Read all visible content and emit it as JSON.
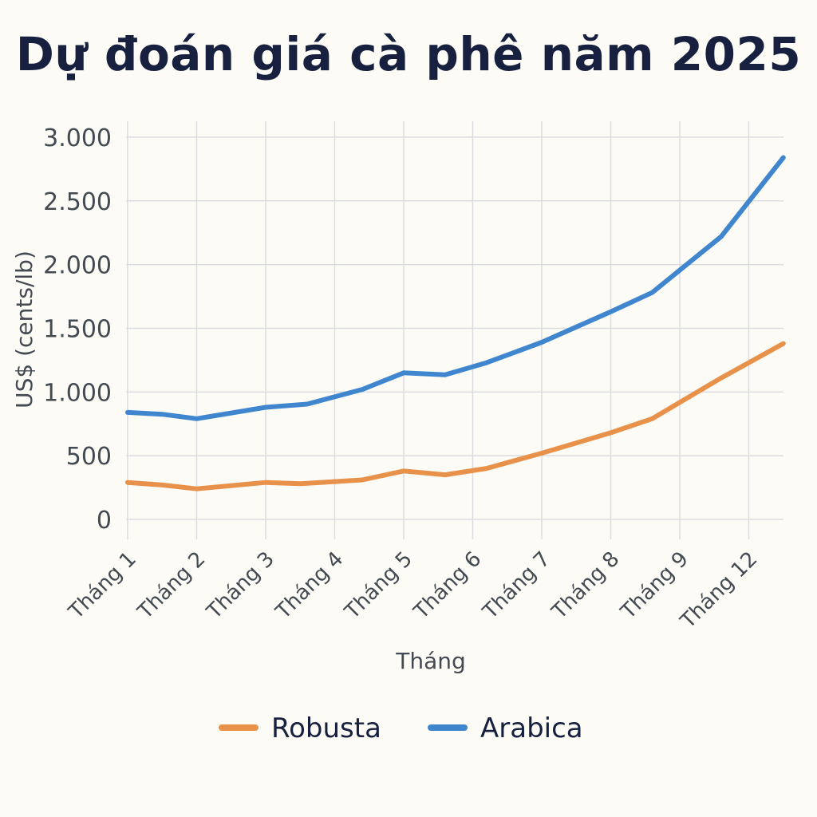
{
  "chart_data": {
    "type": "line",
    "title": "Dự đoán giá cà phê năm 2025",
    "xlabel": "Tháng",
    "ylabel": "US$ (cents/lb)",
    "categories": [
      "Tháng 1",
      "Tháng 2",
      "Tháng 3",
      "Tháng 4",
      "Tháng 5",
      "Tháng 6",
      "Tháng 7",
      "Tháng 8",
      "Tháng 9",
      "Tháng 12"
    ],
    "y_tick_labels": [
      "0",
      "500",
      "1.000",
      "1.500",
      "2.000",
      "2.500",
      "3.000"
    ],
    "y_tick_values": [
      0,
      500,
      1000,
      1500,
      2000,
      2500,
      3000
    ],
    "ylim": [
      -50,
      3100
    ],
    "grid": true,
    "legend_position": "bottom",
    "series": [
      {
        "name": "Robusta",
        "color": "#e8914a",
        "points": [
          {
            "x": 0,
            "y": 290
          },
          {
            "x": 0.5,
            "y": 270
          },
          {
            "x": 1,
            "y": 240
          },
          {
            "x": 2,
            "y": 290
          },
          {
            "x": 2.5,
            "y": 280
          },
          {
            "x": 3.4,
            "y": 310
          },
          {
            "x": 4,
            "y": 380
          },
          {
            "x": 4.6,
            "y": 350
          },
          {
            "x": 5.2,
            "y": 400
          },
          {
            "x": 6,
            "y": 520
          },
          {
            "x": 7,
            "y": 680
          },
          {
            "x": 7.6,
            "y": 790
          },
          {
            "x": 8.6,
            "y": 1110
          },
          {
            "x": 9.5,
            "y": 1380
          }
        ]
      },
      {
        "name": "Arabica",
        "color": "#3f86cf",
        "points": [
          {
            "x": 0,
            "y": 840
          },
          {
            "x": 0.5,
            "y": 825
          },
          {
            "x": 1,
            "y": 790
          },
          {
            "x": 2,
            "y": 880
          },
          {
            "x": 2.6,
            "y": 905
          },
          {
            "x": 3.4,
            "y": 1020
          },
          {
            "x": 4,
            "y": 1150
          },
          {
            "x": 4.6,
            "y": 1135
          },
          {
            "x": 5.2,
            "y": 1230
          },
          {
            "x": 6,
            "y": 1390
          },
          {
            "x": 7,
            "y": 1630
          },
          {
            "x": 7.6,
            "y": 1780
          },
          {
            "x": 8.6,
            "y": 2220
          },
          {
            "x": 9.5,
            "y": 2840
          }
        ]
      }
    ]
  }
}
